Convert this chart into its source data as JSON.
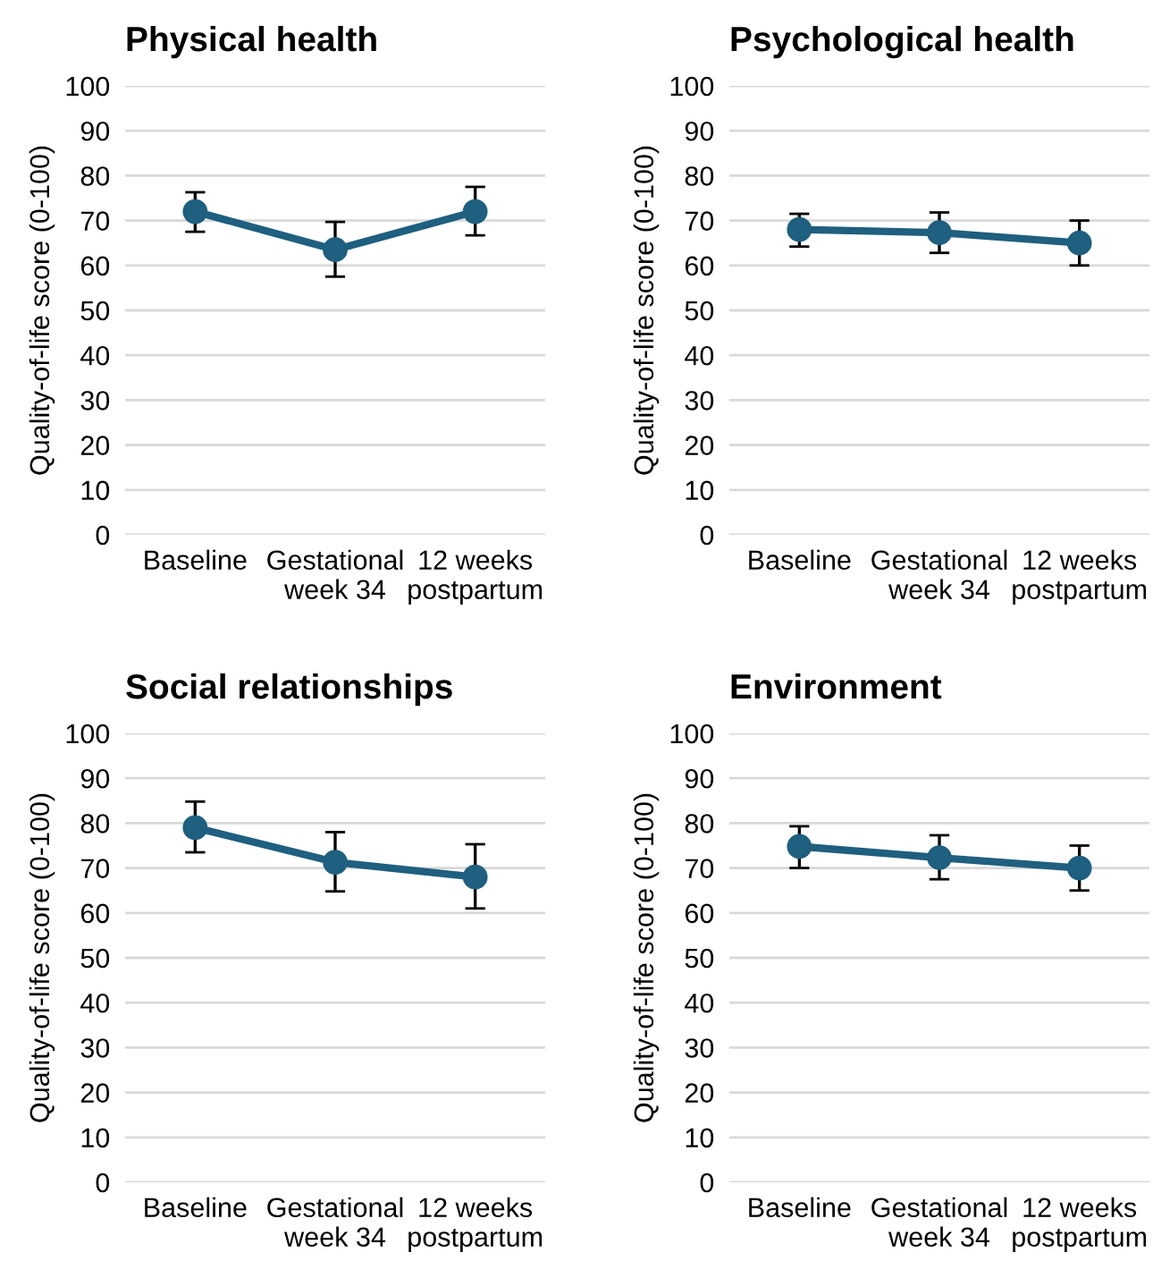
{
  "chart_data": [
    {
      "type": "line",
      "title": "Physical health",
      "ylabel": "Quality-of-life score (0-100)",
      "categories": [
        "Baseline",
        "Gestational\nweek 34",
        "12 weeks\npostpartum"
      ],
      "series": [
        {
          "color": "#1f5f7f",
          "values": [
            72,
            63.5,
            72
          ],
          "errors": [
            [
              67.5,
              76.3
            ],
            [
              57.5,
              69.7
            ],
            [
              66.7,
              77.5
            ]
          ]
        }
      ],
      "ylim": [
        0,
        100
      ],
      "yticks": [
        0,
        10,
        20,
        30,
        40,
        50,
        60,
        70,
        80,
        90,
        100
      ],
      "grid": "y",
      "marker": "circle",
      "line_style": "solid"
    },
    {
      "type": "line",
      "title": "Psychological health",
      "ylabel": "Quality-of-life score (0-100)",
      "categories": [
        "Baseline",
        "Gestational\nweek 34",
        "12 weeks\npostpartum"
      ],
      "series": [
        {
          "color": "#1f5f7f",
          "values": [
            68,
            67.3,
            65
          ],
          "errors": [
            [
              64.2,
              71.5
            ],
            [
              62.8,
              71.8
            ],
            [
              60,
              70
            ]
          ]
        }
      ],
      "ylim": [
        0,
        100
      ],
      "yticks": [
        0,
        10,
        20,
        30,
        40,
        50,
        60,
        70,
        80,
        90,
        100
      ],
      "grid": "y",
      "marker": "circle",
      "line_style": "solid"
    },
    {
      "type": "line",
      "title": "Social relationships",
      "ylabel": "Quality-of-life score (0-100)",
      "categories": [
        "Baseline",
        "Gestational\nweek 34",
        "12 weeks\npostpartum"
      ],
      "series": [
        {
          "color": "#1f5f7f",
          "values": [
            79,
            71.3,
            68
          ],
          "errors": [
            [
              73.5,
              84.8
            ],
            [
              64.8,
              78
            ],
            [
              61,
              75.3
            ]
          ]
        }
      ],
      "ylim": [
        0,
        100
      ],
      "yticks": [
        0,
        10,
        20,
        30,
        40,
        50,
        60,
        70,
        80,
        90,
        100
      ],
      "grid": "y",
      "marker": "circle",
      "line_style": "solid"
    },
    {
      "type": "line",
      "title": "Environment",
      "ylabel": "Quality-of-life score (0-100)",
      "categories": [
        "Baseline",
        "Gestational\nweek 34",
        "12 weeks\npostpartum"
      ],
      "series": [
        {
          "color": "#1f5f7f",
          "values": [
            74.8,
            72.3,
            70
          ],
          "errors": [
            [
              70,
              79.3
            ],
            [
              67.5,
              77.3
            ],
            [
              65,
              75
            ]
          ]
        }
      ],
      "ylim": [
        0,
        100
      ],
      "yticks": [
        0,
        10,
        20,
        30,
        40,
        50,
        60,
        70,
        80,
        90,
        100
      ],
      "grid": "y",
      "marker": "circle",
      "line_style": "solid"
    }
  ]
}
